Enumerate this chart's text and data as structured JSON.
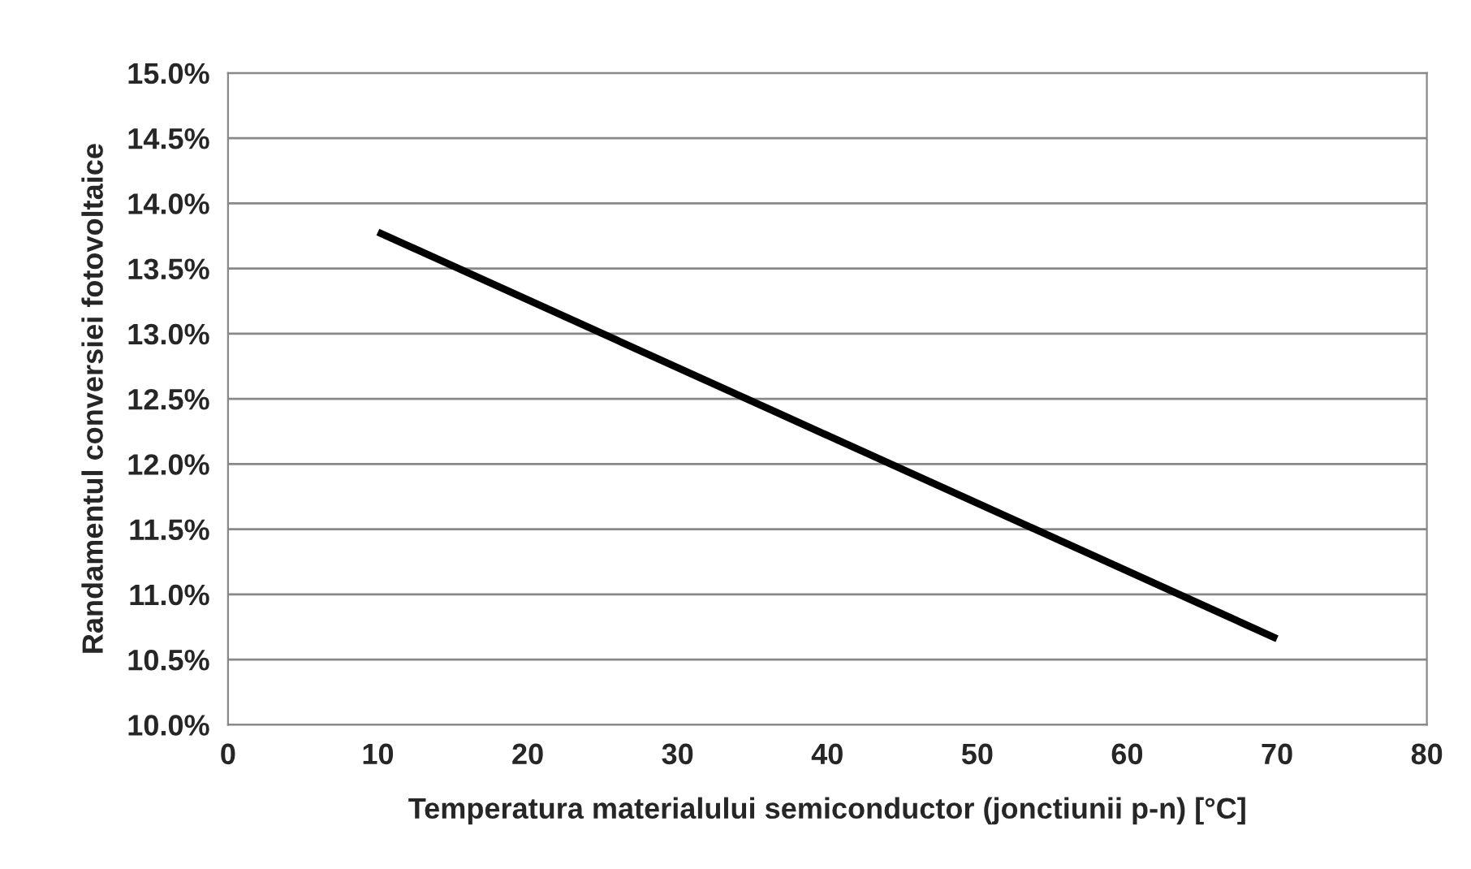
{
  "chart_data": {
    "type": "line",
    "xlabel": "Temperatura materialului semiconductor (jonctiunii p-n) [°C]",
    "ylabel": "Randamentul conversiei fotovoltaice",
    "series": [
      {
        "color": "#000000",
        "x": [
          10,
          70
        ],
        "values": [
          13.78,
          10.66
        ]
      }
    ],
    "xlim": [
      0,
      80
    ],
    "xticks": [
      0,
      10,
      20,
      30,
      40,
      50,
      60,
      70,
      80
    ],
    "ylim": [
      10,
      15
    ],
    "yticks": [
      {
        "value": 10,
        "label": "10.0%"
      },
      {
        "value": 10.5,
        "label": "10.5%"
      },
      {
        "value": 11,
        "label": "11.0%"
      },
      {
        "value": 11.5,
        "label": "11.5%"
      },
      {
        "value": 12,
        "label": "12.0%"
      },
      {
        "value": 12.5,
        "label": "12.5%"
      },
      {
        "value": 13,
        "label": "13.0%"
      },
      {
        "value": 13.5,
        "label": "13.5%"
      },
      {
        "value": 14,
        "label": "14.0%"
      },
      {
        "value": 14.5,
        "label": "14.5%"
      },
      {
        "value": 15,
        "label": "15.0%"
      }
    ],
    "grid": "y",
    "line_style": "solid"
  }
}
